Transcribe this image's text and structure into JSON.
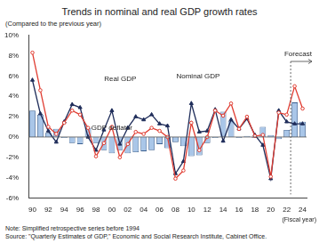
{
  "chart_data": {
    "type": "bar",
    "title": "Trends in nominal and real GDP growth rates",
    "subtitle": "(Compared to the previous year)",
    "x_label": "(Fiscal year)",
    "note": "Note: Simplified retrospective series before 1994",
    "source": "Source: \"Quarterly Estimates of GDP,\" Economic and Social Research Institute, Cabinet Office.",
    "forecast_label": "Forecast",
    "categories": [
      "90",
      null,
      "92",
      null,
      "94",
      null,
      "96",
      null,
      "98",
      null,
      "00",
      null,
      "02",
      null,
      "04",
      null,
      "06",
      null,
      "08",
      null,
      "10",
      null,
      "12",
      null,
      "14",
      null,
      "16",
      null,
      "18",
      null,
      "20",
      null,
      "22",
      null,
      "24"
    ],
    "series": [
      {
        "name": "GDP deflator",
        "type": "bar",
        "color": "#a9c6e8",
        "values": [
          2.6,
          2.2,
          0.4,
          0.8,
          -0.1,
          -0.6,
          -0.7,
          0.9,
          -0.6,
          -1.3,
          -1.6,
          -1.3,
          -1.6,
          -1.5,
          -1.4,
          -1.3,
          -0.7,
          -1.1,
          -0.5,
          -0.9,
          -1.9,
          -1.8,
          -0.6,
          -0.1,
          2.5,
          1.6,
          -0.1,
          0.1,
          -0.1,
          1.0,
          0.2,
          -0.2,
          0.7,
          3.4,
          1.5
        ]
      },
      {
        "name": "Real GDP",
        "type": "line",
        "color": "#1f2d5a",
        "marker": "triangle",
        "values": [
          5.6,
          2.3,
          0.6,
          -0.5,
          1.5,
          3.2,
          2.9,
          0.0,
          -1.3,
          0.7,
          2.6,
          -0.7,
          0.9,
          2.0,
          1.7,
          2.2,
          1.3,
          1.1,
          -3.6,
          -2.4,
          3.3,
          0.5,
          0.6,
          2.7,
          -0.4,
          1.7,
          0.8,
          1.8,
          0.2,
          -0.8,
          -4.1,
          2.6,
          1.5,
          1.3,
          1.3
        ]
      },
      {
        "name": "Nominal GDP",
        "type": "line",
        "color": "#e03c31",
        "marker": "circle",
        "values": [
          8.3,
          4.6,
          1.0,
          0.3,
          1.4,
          2.6,
          2.2,
          0.9,
          -1.9,
          -0.6,
          1.0,
          -2.0,
          -0.7,
          0.5,
          0.3,
          0.9,
          0.6,
          0.0,
          -4.1,
          -3.3,
          1.4,
          -1.3,
          0.0,
          2.6,
          2.1,
          3.3,
          0.8,
          2.0,
          0.1,
          0.2,
          -3.9,
          2.4,
          2.2,
          5.0,
          2.8
        ]
      }
    ],
    "ylim": [
      -6,
      10
    ],
    "yticks": [
      {
        "value": -6,
        "label": "-6%"
      },
      {
        "value": -4,
        "label": "-4%"
      },
      {
        "value": -2,
        "label": "-2%"
      },
      {
        "value": 0,
        "label": "0%"
      },
      {
        "value": 2,
        "label": "2%"
      },
      {
        "value": 4,
        "label": "4%"
      },
      {
        "value": 6,
        "label": "6%"
      },
      {
        "value": 8,
        "label": "8%"
      },
      {
        "value": 10,
        "label": "10%"
      }
    ],
    "grid": false,
    "legend": false
  }
}
